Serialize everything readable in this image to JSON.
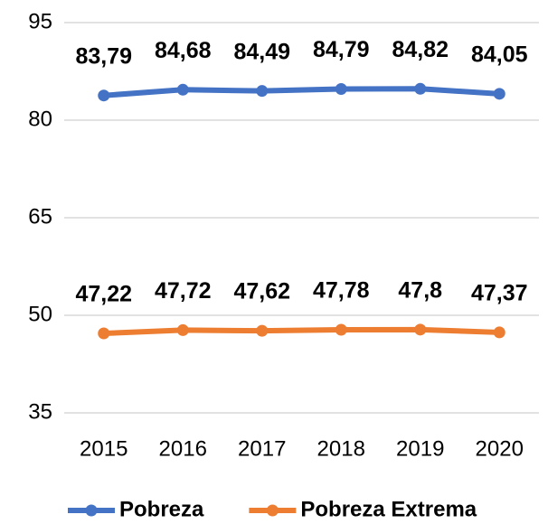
{
  "chart_data": {
    "type": "line",
    "categories": [
      "2015",
      "2016",
      "2017",
      "2018",
      "2019",
      "2020"
    ],
    "series": [
      {
        "name": "Pobreza",
        "color": "#4472c4",
        "values": [
          83.79,
          84.68,
          84.49,
          84.79,
          84.82,
          84.05
        ],
        "value_labels": [
          "83,79",
          "84,68",
          "84,49",
          "84,79",
          "84,82",
          "84,05"
        ]
      },
      {
        "name": "Pobreza Extrema",
        "color": "#ed7d31",
        "values": [
          47.22,
          47.72,
          47.62,
          47.78,
          47.8,
          47.37
        ],
        "value_labels": [
          "47,22",
          "47,72",
          "47,62",
          "47,78",
          "47,8",
          "47,37"
        ]
      }
    ],
    "ylim": [
      35,
      95
    ],
    "yticks": [
      35,
      50,
      65,
      80,
      95
    ],
    "grid": true,
    "legend": "bottom"
  }
}
